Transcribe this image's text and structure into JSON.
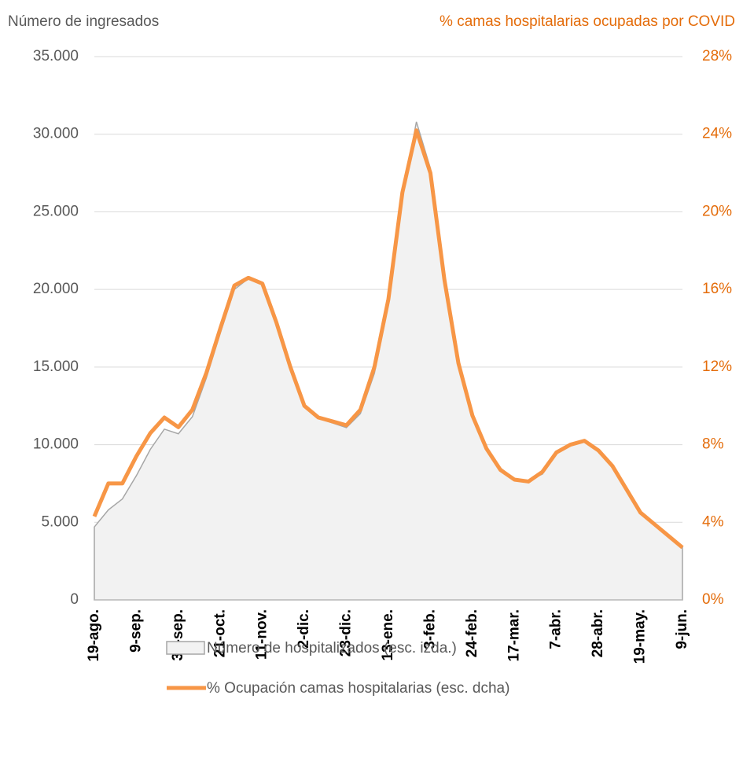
{
  "chart_data": {
    "type": "combo",
    "ylabel": "Número de ingresados",
    "y2label": "% camas hospitalarias ocupadas por COVID",
    "categories": [
      "19-ago.",
      null,
      null,
      "9-sep.",
      null,
      null,
      "30-sep.",
      null,
      null,
      "21-oct.",
      null,
      null,
      "11-nov.",
      null,
      null,
      "2-dic.",
      null,
      null,
      "23-dic.",
      null,
      null,
      "13-ene.",
      null,
      null,
      "3-feb.",
      null,
      null,
      "24-feb.",
      null,
      null,
      "17-mar.",
      null,
      null,
      "7-abr.",
      null,
      null,
      "28-abr.",
      null,
      null,
      "19-may.",
      null,
      null,
      "9-jun."
    ],
    "series": [
      {
        "name": "Número de hospitalizados (esc. izda.)",
        "type": "area",
        "color": "#f2f2f2",
        "edge_color": "#a6a6a6",
        "axis": "y",
        "values": [
          4700,
          5800,
          6500,
          8000,
          9700,
          11000,
          10700,
          11800,
          14300,
          17200,
          20000,
          20700,
          20300,
          18000,
          15000,
          12500,
          11700,
          11400,
          11100,
          12000,
          14600,
          19000,
          26000,
          30800,
          27800,
          20800,
          15200,
          12000,
          9700,
          8500,
          7800,
          7700,
          8100,
          9500,
          10000,
          10200,
          9700,
          8600,
          7100,
          5700,
          4900,
          4100,
          3400
        ]
      },
      {
        "name": "% Ocupación camas hospitalarias (esc. dcha)",
        "type": "line",
        "color": "#f79646",
        "axis": "y2",
        "values": [
          4.3,
          6.0,
          6.0,
          7.4,
          8.6,
          9.4,
          8.9,
          9.8,
          11.7,
          14.0,
          16.2,
          16.6,
          16.3,
          14.3,
          12.0,
          10.0,
          9.4,
          9.2,
          9.0,
          9.8,
          12.0,
          15.5,
          21.0,
          24.2,
          22.0,
          16.5,
          12.2,
          9.5,
          7.8,
          6.7,
          6.2,
          6.1,
          6.6,
          7.6,
          8.0,
          8.2,
          7.7,
          6.9,
          5.7,
          4.5,
          3.9,
          3.3,
          2.7
        ]
      }
    ],
    "ylim": [
      0,
      35000
    ],
    "yticks": [
      0,
      {
        "value": 5000,
        "label": "5.000"
      },
      {
        "value": 10000,
        "label": "10.000"
      },
      {
        "value": 15000,
        "label": "15.000"
      },
      {
        "value": 20000,
        "label": "20.000"
      },
      {
        "value": 25000,
        "label": "25.000"
      },
      {
        "value": 30000,
        "label": "30.000"
      },
      {
        "value": 35000,
        "label": "35.000"
      }
    ],
    "y2lim": [
      0,
      28
    ],
    "y2ticks": [
      {
        "value": 0,
        "label": "0%"
      },
      {
        "value": 4,
        "label": "4%"
      },
      {
        "value": 8,
        "label": "8%"
      },
      {
        "value": 12,
        "label": "12%"
      },
      {
        "value": 16,
        "label": "16%"
      },
      {
        "value": 20,
        "label": "20%"
      },
      {
        "value": 24,
        "label": "24%"
      },
      {
        "value": 28,
        "label": "28%"
      }
    ],
    "grid": true,
    "y2color": "#e46c0a"
  }
}
